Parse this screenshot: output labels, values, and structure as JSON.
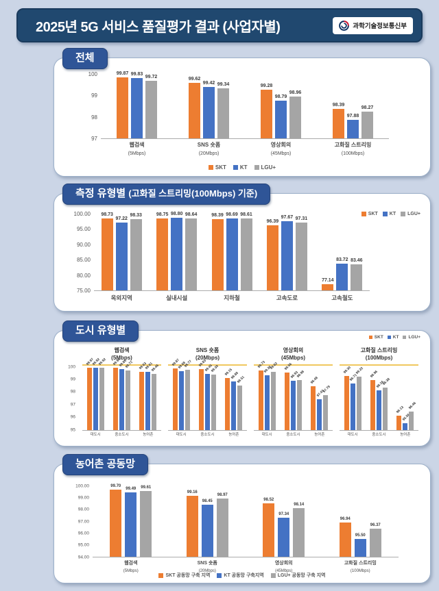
{
  "header": {
    "title": "2025년 5G 서비스 품질평가 결과 (사업자별)",
    "ministry": "과학기술정보통신부"
  },
  "colors": {
    "page_bg": "#CBD5E6",
    "header_bg": "#20486F",
    "badge_bg": "#2F5597",
    "skt_orange": "#ED7D31",
    "kt_blue": "#4472C4",
    "lgu_gray": "#A5A5A5",
    "title_underline": "#F0C75E"
  },
  "series_colors": [
    "#ED7D31",
    "#4472C4",
    "#A5A5A5"
  ],
  "panels": {
    "overall": {
      "badge": "전체"
    },
    "type": {
      "badge_main": "측정 유형별",
      "badge_sub": "(고화질 스트리밍(100Mbps) 기준)"
    },
    "city": {
      "badge": "도시 유형별"
    },
    "rural": {
      "badge": "농어촌 공동망"
    }
  },
  "chart_data": [
    {
      "id": "overall",
      "type": "bar",
      "title": "전체",
      "categories": [
        "웹검색",
        "SNS 숏폼",
        "영상회의",
        "고화질 스트리밍"
      ],
      "category_sublabels": [
        "(5Mbps)",
        "(20Mbps)",
        "(45Mbps)",
        "(100Mbps)"
      ],
      "series": [
        {
          "name": "SKT",
          "values": [
            99.87,
            99.62,
            99.28,
            98.39
          ]
        },
        {
          "name": "KT",
          "values": [
            99.83,
            99.42,
            98.79,
            97.88
          ]
        },
        {
          "name": "LGU+",
          "values": [
            99.72,
            99.34,
            98.96,
            98.27
          ]
        }
      ],
      "ylim": [
        97,
        100
      ],
      "yticks": [
        100,
        99,
        98,
        97
      ],
      "ytick_labels": [
        "100",
        "99",
        "98",
        "97"
      ],
      "legend": [
        "SKT",
        "KT",
        "LGU+"
      ],
      "legend_position": "bottom-center",
      "grid": false
    },
    {
      "id": "type",
      "type": "bar",
      "title": "측정 유형별 (고화질 스트리밍(100Mbps) 기준)",
      "categories": [
        "옥외지역",
        "실내시설",
        "지하철",
        "고속도로",
        "고속철도"
      ],
      "series": [
        {
          "name": "SKT",
          "values": [
            98.73,
            98.75,
            98.39,
            96.39,
            77.14
          ]
        },
        {
          "name": "KT",
          "values": [
            97.22,
            98.8,
            98.69,
            97.67,
            83.72
          ]
        },
        {
          "name": "LGU+",
          "values": [
            98.33,
            98.64,
            98.61,
            97.31,
            83.46
          ]
        }
      ],
      "ylim": [
        75,
        100
      ],
      "yticks": [
        100,
        95,
        90,
        85,
        80,
        75
      ],
      "ytick_labels": [
        "100.00",
        "95.00",
        "90.00",
        "85.00",
        "80.00",
        "75.00"
      ],
      "legend": [
        "SKT",
        "KT",
        "LGU+"
      ],
      "legend_position": "top-right",
      "grid": false
    },
    {
      "id": "city",
      "type": "bar",
      "title": "도시 유형별",
      "categories": [
        "대도시",
        "중소도시",
        "농어촌"
      ],
      "ylim": [
        95,
        100
      ],
      "yticks": [
        100,
        99,
        98,
        97,
        96,
        95
      ],
      "ytick_labels": [
        "100",
        "99",
        "98",
        "97",
        "96",
        "95"
      ],
      "legend": [
        "SKT",
        "KT",
        "LGU+"
      ],
      "legend_position": "top-right",
      "grid": false,
      "subcharts": [
        {
          "title": "웹검색",
          "sublabel": "(5Mbps)",
          "series": [
            {
              "name": "SKT",
              "values": [
                99.97,
                99.94,
                99.63
              ]
            },
            {
              "name": "KT",
              "values": [
                99.92,
                99.85,
                99.61
              ]
            },
            {
              "name": "LGU+",
              "values": [
                99.92,
                99.71,
                99.46
              ]
            }
          ]
        },
        {
          "title": "SNS 숏폼",
          "sublabel": "(20Mbps)",
          "series": [
            {
              "name": "SKT",
              "values": [
                99.87,
                99.83,
                99.15
              ]
            },
            {
              "name": "KT",
              "values": [
                99.68,
                99.45,
                98.88
              ]
            },
            {
              "name": "LGU+",
              "values": [
                99.77,
                99.39,
                98.51
              ]
            }
          ]
        },
        {
          "title": "영상회의",
          "sublabel": "(45Mbps)",
          "series": [
            {
              "name": "SKT",
              "values": [
                99.73,
                99.56,
                98.48
              ]
            },
            {
              "name": "KT",
              "values": [
                99.36,
                98.93,
                97.43
              ]
            },
            {
              "name": "LGU+",
              "values": [
                99.62,
                98.98,
                97.79
              ]
            }
          ]
        },
        {
          "title": "고화질 스트리밍",
          "sublabel": "(100Mbps)",
          "series": [
            {
              "name": "SKT",
              "values": [
                99.3,
                98.96,
                96.13
              ]
            },
            {
              "name": "KT",
              "values": [
                98.71,
                98.16,
                95.56
              ]
            },
            {
              "name": "LGU+",
              "values": [
                99.22,
                98.38,
                96.46
              ]
            }
          ]
        }
      ]
    },
    {
      "id": "rural",
      "type": "bar",
      "title": "농어촌 공동망",
      "categories": [
        "웹검색",
        "SNS 숏폼",
        "영상회의",
        "고화질 스트리밍"
      ],
      "category_sublabels": [
        "(5Mbps)",
        "(20Mbps)",
        "(45Mbps)",
        "(100Mbps)"
      ],
      "series": [
        {
          "name": "SKT",
          "values": [
            99.7,
            99.16,
            98.52,
            96.94
          ]
        },
        {
          "name": "KT",
          "values": [
            99.49,
            98.45,
            97.34,
            95.5
          ]
        },
        {
          "name": "LGU+",
          "values": [
            99.61,
            98.97,
            98.14,
            96.37
          ]
        }
      ],
      "ylim": [
        94,
        100
      ],
      "yticks": [
        100,
        99,
        98,
        97,
        96,
        95,
        94
      ],
      "ytick_labels": [
        "100.00",
        "99.00",
        "98.00",
        "97.00",
        "96.00",
        "95.00",
        "94.00"
      ],
      "legend": [
        "SKT 공동망 구축 지역",
        "KT 공동망 구축지역",
        "LGU+ 공동망 구축 지역"
      ],
      "legend_position": "bottom-center",
      "grid": false
    }
  ]
}
